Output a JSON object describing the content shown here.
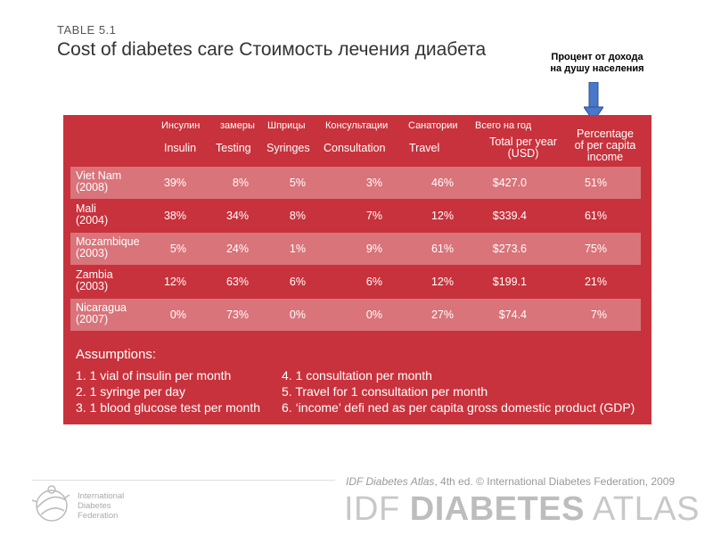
{
  "slide": {
    "table_label": "TABLE 5.1",
    "title": "Cost of diabetes care Стоимость лечения диабета",
    "annotation_line1": "Процент от дохода",
    "annotation_line2": "на душу населения"
  },
  "table": {
    "headers_ru": [
      "Инсулин",
      "замеры",
      "Шприцы",
      "Консультации",
      "Санатории",
      "Всего на год"
    ],
    "headers_en": [
      "Insulin",
      "Testing",
      "Syringes",
      "Consultation",
      "Travel"
    ],
    "total_header_line1": "Total per year",
    "total_header_line2": "(USD)",
    "pct_header_line1": "Percentage",
    "pct_header_line2": "of per capita",
    "pct_header_line3": "income",
    "rows": [
      {
        "country": "Viet Nam",
        "year": "(2008)",
        "insulin": "39%",
        "testing": "8%",
        "syringes": "5%",
        "consultation": "3%",
        "travel": "46%",
        "total": "$427.0",
        "pct": "51%"
      },
      {
        "country": "Mali",
        "year": "(2004)",
        "insulin": "38%",
        "testing": "34%",
        "syringes": "8%",
        "consultation": "7%",
        "travel": "12%",
        "total": "$339.4",
        "pct": "61%"
      },
      {
        "country": "Mozambique",
        "year": "(2003)",
        "insulin": "5%",
        "testing": "24%",
        "syringes": "1%",
        "consultation": "9%",
        "travel": "61%",
        "total": "$273.6",
        "pct": "75%"
      },
      {
        "country": "Zambia",
        "year": "(2003)",
        "insulin": "12%",
        "testing": "63%",
        "syringes": "6%",
        "consultation": "6%",
        "travel": "12%",
        "total": "$199.1",
        "pct": "21%"
      },
      {
        "country": "Nicaragua",
        "year": "(2007)",
        "insulin": "0%",
        "testing": "73%",
        "syringes": "0%",
        "consultation": "0%",
        "travel": "27%",
        "total": "$74.4",
        "pct": "7%"
      }
    ]
  },
  "assumptions": {
    "title": "Assumptions:",
    "items": [
      "1.  1 vial of insulin per month",
      "2.  1 syringe per day",
      "3.  1 blood glucose test per month",
      "4.  1 consultation per month",
      "5.  Travel for 1 consultation per month",
      "6.  ‘income’ defi ned as per capita gross domestic product (GDP)"
    ]
  },
  "footer": {
    "credit_italic": "IDF Diabetes Atlas",
    "credit_rest": ", 4th ed.  © International Diabetes Federation, 2009",
    "atlas_idf": "IDF ",
    "atlas_diabetes": "DIABETES",
    "atlas_word": " ATLAS",
    "org_line1": "International",
    "org_line2": "Diabetes",
    "org_line3": "Federation"
  },
  "colors": {
    "panel": "#c8323c",
    "row_light": "#d9747a",
    "arrow": "#4a78c8"
  },
  "icons": {
    "arrow": "arrow-down-icon",
    "logo": "idf-logo-icon"
  }
}
